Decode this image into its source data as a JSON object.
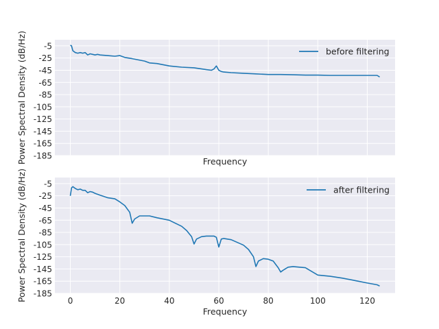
{
  "style": {
    "plot_bg": "#eaeaf2",
    "grid": "#ffffff",
    "series_color": "#1f77b4",
    "text": "#262626"
  },
  "chart_data": [
    {
      "type": "line",
      "xlabel": "Frequency",
      "ylabel": "Power Spectral Density (dB/Hz)",
      "xlim": [
        -6.25,
        131.25
      ],
      "ylim": [
        -185,
        5
      ],
      "x_ticks": [
        0,
        20,
        40,
        60,
        80,
        100,
        120
      ],
      "x_tick_labels_visible": false,
      "y_ticks": [
        -5,
        -25,
        -45,
        -65,
        -85,
        -105,
        -125,
        -145,
        -165,
        -185
      ],
      "y_tick_labels": [
        "-5",
        "-25",
        "-45",
        "-65",
        "-85",
        "-105",
        "-125",
        "-145",
        "-165",
        "-185"
      ],
      "grid": true,
      "legend_position": "top-right",
      "series": [
        {
          "name": "before filtering",
          "x": [
            0,
            0.5,
            1,
            2,
            3,
            4,
            5,
            6,
            7,
            8,
            9,
            10,
            11,
            12,
            15,
            18,
            20,
            22,
            25,
            30,
            32,
            35,
            40,
            45,
            50,
            55,
            57,
            58,
            59,
            60,
            61,
            62,
            65,
            70,
            75,
            80,
            85,
            90,
            95,
            100,
            105,
            110,
            115,
            120,
            124,
            125
          ],
          "values": [
            -4,
            -5,
            -13,
            -16,
            -17,
            -16,
            -17,
            -16,
            -20,
            -18,
            -19,
            -20,
            -19,
            -20,
            -21,
            -22,
            -21,
            -24,
            -26,
            -30,
            -33,
            -34,
            -38,
            -40,
            -41,
            -44,
            -45,
            -43,
            -38,
            -45,
            -47,
            -48,
            -49,
            -50,
            -51,
            -52,
            -52,
            -52.5,
            -53,
            -53,
            -53.5,
            -53.5,
            -53.5,
            -53.5,
            -53.5,
            -56
          ]
        }
      ]
    },
    {
      "type": "line",
      "xlabel": "Frequency",
      "ylabel": "Power Spectral Density (dB/Hz)",
      "xlim": [
        -6.25,
        131.25
      ],
      "ylim": [
        -185,
        5
      ],
      "x_ticks": [
        0,
        20,
        40,
        60,
        80,
        100,
        120
      ],
      "x_tick_labels": [
        "0",
        "20",
        "40",
        "60",
        "80",
        "100",
        "120"
      ],
      "y_ticks": [
        -5,
        -25,
        -45,
        -65,
        -85,
        -105,
        -125,
        -145,
        -165,
        -185
      ],
      "y_tick_labels": [
        "-5",
        "-25",
        "-45",
        "-65",
        "-85",
        "-105",
        "-125",
        "-145",
        "-165",
        "-185"
      ],
      "grid": true,
      "legend_position": "top-right",
      "series": [
        {
          "name": "after filtering",
          "x": [
            0,
            0.5,
            1,
            2,
            3,
            4,
            5,
            6,
            7,
            8,
            9,
            10,
            12,
            15,
            18,
            20,
            22,
            24,
            25,
            26,
            28,
            30,
            32,
            35,
            40,
            45,
            47,
            49,
            50,
            51,
            53,
            55,
            58,
            59,
            60,
            61,
            62,
            65,
            70,
            72,
            74,
            75,
            76,
            78,
            80,
            82,
            84,
            85,
            86,
            88,
            90,
            95,
            100,
            105,
            110,
            115,
            120,
            124,
            125
          ],
          "values": [
            -25,
            -12,
            -10,
            -13,
            -15,
            -14,
            -16,
            -16,
            -20,
            -18,
            -19,
            -21,
            -24,
            -28,
            -30,
            -35,
            -41,
            -52,
            -70,
            -63,
            -58,
            -58,
            -58,
            -61,
            -65,
            -75,
            -82,
            -92,
            -104,
            -96,
            -92,
            -91,
            -91,
            -93,
            -109,
            -96,
            -95,
            -97,
            -106,
            -113,
            -125,
            -141,
            -132,
            -128,
            -129,
            -132,
            -143,
            -150,
            -147,
            -142,
            -141,
            -143,
            -155,
            -157,
            -160,
            -164,
            -168,
            -171,
            -173
          ]
        }
      ]
    }
  ]
}
